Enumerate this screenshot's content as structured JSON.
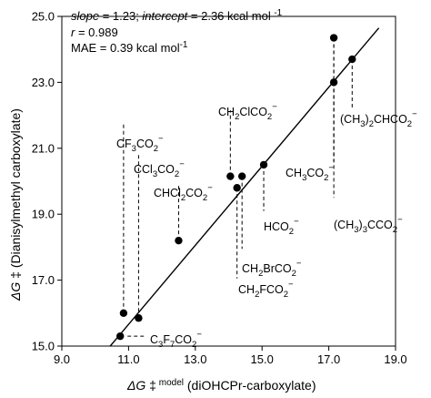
{
  "chart_data": {
    "type": "scatter",
    "xlabel": "ΔG‡ model (diOHCPr-carboxylate)",
    "ylabel": "ΔG‡ (Dianisylmethyl carboxylate)",
    "xlim": [
      9.0,
      19.0
    ],
    "ylim": [
      15.0,
      25.0
    ],
    "xticks": [
      "9.0",
      "11.0",
      "13.0",
      "15.0",
      "17.0",
      "19.0"
    ],
    "yticks": [
      "15.0",
      "17.0",
      "19.0",
      "21.0",
      "23.0",
      "25.0"
    ],
    "stats": {
      "line1": "slope = 1.23; intercept = 2.36 kcal mol -1",
      "line2": "r = 0.989",
      "line3": "MAE = 0.39 kcal mol -1"
    },
    "fit": {
      "slope": 1.23,
      "intercept": 2.36
    },
    "points": [
      {
        "x": 10.75,
        "y": 15.3
      },
      {
        "x": 10.85,
        "y": 16.0
      },
      {
        "x": 11.3,
        "y": 15.85
      },
      {
        "x": 12.5,
        "y": 18.2
      },
      {
        "x": 14.05,
        "y": 20.15
      },
      {
        "x": 14.25,
        "y": 19.8
      },
      {
        "x": 14.4,
        "y": 20.15
      },
      {
        "x": 15.05,
        "y": 20.5
      },
      {
        "x": 17.15,
        "y": 24.35
      },
      {
        "x": 17.15,
        "y": 23.0
      },
      {
        "x": 17.7,
        "y": 23.7
      }
    ],
    "annotations": [
      {
        "base": "CF",
        "sub1": "3",
        "mid": "CO",
        "sub2": "2",
        "sup": "−"
      },
      {
        "base": "CCl",
        "sub1": "3",
        "mid": "CO",
        "sub2": "2",
        "sup": "−"
      },
      {
        "base": "CHCl",
        "sub1": "2",
        "mid": "CO",
        "sub2": "2",
        "sup": "−"
      },
      {
        "base": "C",
        "sub1": "3",
        "mid": "F",
        "sub2": "7",
        "tail": "CO",
        "sub3": "2",
        "sup": "−"
      },
      {
        "base": "CH",
        "sub1": "2",
        "mid": "ClCO",
        "sub2": "2",
        "sup": "−"
      },
      {
        "base": "CH",
        "sub1": "2",
        "mid": "BrCO",
        "sub2": "2",
        "sup": "−"
      },
      {
        "base": "CH",
        "sub1": "2",
        "mid": "FCO",
        "sub2": "2",
        "sup": "−"
      },
      {
        "base": "HCO",
        "sub1": "2",
        "sup": "−"
      },
      {
        "base": "CH",
        "sub1": "3",
        "mid": "CO",
        "sub2": "2",
        "sup": "−"
      },
      {
        "base": "(CH",
        "sub1": "3",
        "mid": ")",
        "sub2": "3",
        "tail": "CCO",
        "sub3": "2",
        "sup": "−"
      },
      {
        "base": "(CH",
        "sub1": "3",
        "mid": ")",
        "sub2": "2",
        "tail": "CHCO",
        "sub3": "2",
        "sup": "−"
      }
    ]
  }
}
